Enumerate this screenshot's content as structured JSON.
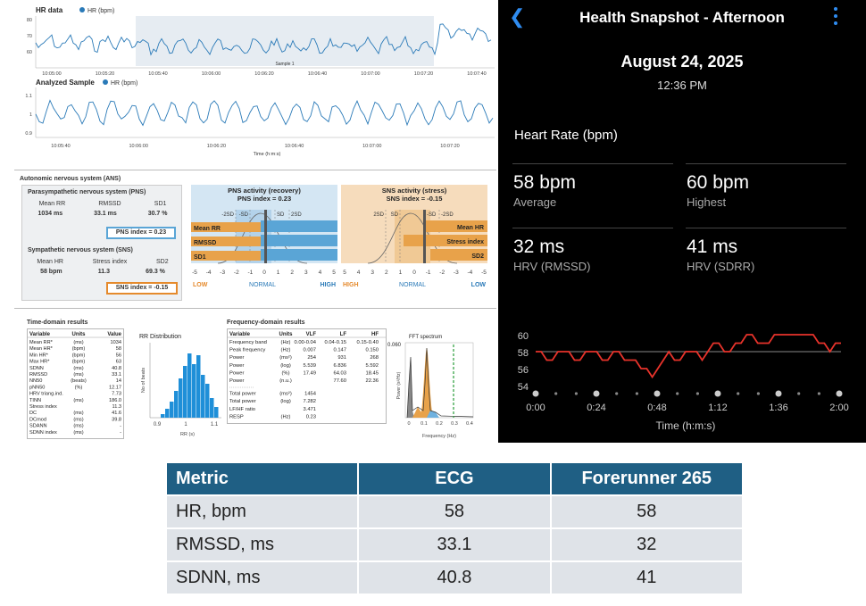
{
  "hr_chart": {
    "title": "HR data",
    "legend": "HR (bpm)",
    "yticks": [
      "80",
      "70",
      "60"
    ],
    "xticks": [
      "10:05:00",
      "10:05:20",
      "10:05:40",
      "10:06:00",
      "10:06:20",
      "10:06:40",
      "10:07:00",
      "10:07:20",
      "10:07:40"
    ],
    "sample_label": "Sample 1"
  },
  "analyzed_chart": {
    "title": "Analyzed Sample",
    "legend": "HR (bpm)",
    "yticks": [
      "1.1",
      "1",
      "0.9"
    ],
    "xticks": [
      "10:05:40",
      "10:06:00",
      "10:06:20",
      "10:06:40",
      "10:07:00",
      "10:07:20"
    ],
    "xlabel": "Time (h:m:s)"
  },
  "ans": {
    "title": "Autonomic nervous system (ANS)",
    "pns_title": "Parasympathetic nervous system (PNS)",
    "pns_headers": [
      "Mean RR",
      "RMSSD",
      "SD1"
    ],
    "pns_values": [
      "1034 ms",
      "33.1 ms",
      "30.7 %"
    ],
    "pns_index": "PNS index = 0.23",
    "sns_title": "Sympathetic nervous system (SNS)",
    "sns_headers": [
      "Mean HR",
      "Stress index",
      "SD2"
    ],
    "sns_values": [
      "58 bpm",
      "11.3",
      "69.3 %"
    ],
    "sns_index": "SNS index = -0.15",
    "pns_activity_title": "PNS activity (recovery)",
    "pns_activity_index": "PNS index = 0.23",
    "pns_bars": [
      "Mean RR",
      "RMSSD",
      "SD1"
    ],
    "pns_scale": [
      "-5",
      "-4",
      "-3",
      "-2",
      "-1",
      "0",
      "1",
      "2",
      "3",
      "4",
      "5"
    ],
    "pns_sd_labels": [
      "-2SD",
      "-SD",
      "SD",
      "2SD"
    ],
    "pns_low": "LOW",
    "pns_normal": "NORMAL",
    "pns_high": "HIGH",
    "sns_activity_title": "SNS activity (stress)",
    "sns_activity_index": "SNS index = -0.15",
    "sns_bars": [
      "Mean HR",
      "Stress index",
      "SD2"
    ],
    "sns_scale": [
      "5",
      "4",
      "3",
      "2",
      "1",
      "0",
      "-1",
      "-2",
      "-3",
      "-4",
      "-5"
    ],
    "sns_sd_labels": [
      "2SD",
      "SD",
      "-SD",
      "-2SD"
    ],
    "sns_high": "HIGH",
    "sns_normal": "NORMAL",
    "sns_low": "LOW"
  },
  "time_domain": {
    "title": "Time-domain results",
    "headers": [
      "Variable",
      "Units",
      "Value"
    ],
    "rows": [
      [
        "Mean RR*",
        "(ms)",
        "1034"
      ],
      [
        "Mean HR*",
        "(bpm)",
        "58"
      ],
      [
        "Min HR*",
        "(bpm)",
        "56"
      ],
      [
        "Max HR*",
        "(bpm)",
        "63"
      ],
      [
        "SDNN",
        "(ms)",
        "40.8"
      ],
      [
        "RMSSD",
        "(ms)",
        "33.1"
      ],
      [
        "NN50",
        "(beats)",
        "14"
      ],
      [
        "pNN50",
        "(%)",
        "12.17"
      ],
      [
        "HRV triang.ind.",
        "",
        "7.73"
      ],
      [
        "TINN",
        "(ms)",
        "186.0"
      ],
      [
        "Stress index",
        "",
        "11.3"
      ],
      [
        "DC",
        "(ms)",
        "41.6"
      ],
      [
        "DCmod",
        "(ms)",
        "39.8"
      ],
      [
        "SDANN",
        "(ms)",
        "-"
      ],
      [
        "SDNN index",
        "(ms)",
        "-"
      ]
    ]
  },
  "rr_dist": {
    "title": "RR Distribution",
    "ylabel": "No of beats",
    "xlabel": "RR (s)",
    "xticks": [
      "0.9",
      "1",
      "1.1"
    ]
  },
  "freq_domain": {
    "title": "Frequency-domain results",
    "headers": [
      "Variable",
      "Units",
      "VLF",
      "LF",
      "HF"
    ],
    "rows": [
      [
        "Frequency band",
        "(Hz)",
        "0.00-0.04",
        "0.04-0.15",
        "0.15-0.40"
      ],
      [
        "Peak frequency",
        "(Hz)",
        "0.007",
        "0.147",
        "0.150"
      ],
      [
        "Power",
        "(ms²)",
        "254",
        "931",
        "268"
      ],
      [
        "Power",
        "(log)",
        "5.539",
        "6.836",
        "5.592"
      ],
      [
        "Power",
        "(%)",
        "17.49",
        "64.03",
        "18.45"
      ],
      [
        "Power",
        "(n.u.)",
        "",
        "77.60",
        "22.36"
      ],
      [
        "Total power",
        "(ms²)",
        "1454",
        "",
        ""
      ],
      [
        "Total power",
        "(log)",
        "7.282",
        "",
        ""
      ],
      [
        "LF/HF ratio",
        "",
        "3.471",
        "",
        ""
      ],
      [
        "RESP",
        "(Hz)",
        "0.23",
        "",
        ""
      ]
    ]
  },
  "fft": {
    "title": "FFT spectrum",
    "ymax": "0.060",
    "ylabel": "Power (s²/Hz)",
    "xlabel": "Frequency (Hz)",
    "xticks": [
      "0",
      "0.1",
      "0.2",
      "0.3",
      "0.4"
    ]
  },
  "phone": {
    "title": "Health Snapshot - Afternoon",
    "date": "August 24, 2025",
    "time": "12:36 PM",
    "section": "Heart Rate (bpm)",
    "stats": [
      {
        "value": "58 bpm",
        "label": "Average"
      },
      {
        "value": "60 bpm",
        "label": "Highest"
      },
      {
        "value": "32 ms",
        "label": "HRV (RMSSD)"
      },
      {
        "value": "41 ms",
        "label": "HRV (SDRR)"
      }
    ],
    "chart_yticks": [
      "60",
      "58",
      "56",
      "54"
    ],
    "chart_xticks": [
      "0:00",
      "0:24",
      "0:48",
      "1:12",
      "1:36",
      "2:00"
    ],
    "chart_xlabel": "Time (h:m:s)",
    "accent": "#e8332b"
  },
  "comparison": {
    "headers": [
      "Metric",
      "ECG",
      "Forerunner 265"
    ],
    "rows": [
      [
        "HR, bpm",
        "58",
        "58"
      ],
      [
        "RMSSD, ms",
        "33.1",
        "32"
      ],
      [
        "SDNN, ms",
        "40.8",
        "41"
      ]
    ],
    "header_color": "#1f5f84"
  }
}
